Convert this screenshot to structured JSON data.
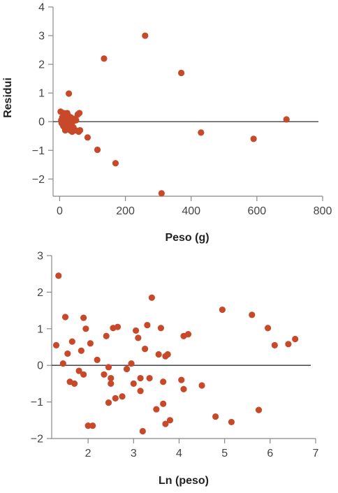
{
  "chart_data": [
    {
      "type": "scatter",
      "title": "",
      "xlabel": "Peso (g)",
      "ylabel": "Residui",
      "xlim": [
        -20,
        800
      ],
      "ylim": [
        -2.6,
        4
      ],
      "xticks": [
        0,
        200,
        400,
        600,
        800
      ],
      "yticks": [
        -2,
        -1,
        0,
        1,
        2,
        3,
        4
      ],
      "xtick_labels": [
        "0",
        "200",
        "400",
        "600",
        "800"
      ],
      "ytick_labels": [
        "−2",
        "−1",
        "0",
        "1",
        "2",
        "3",
        "4"
      ],
      "reference_line_y": 0,
      "grid": false,
      "marker_color": "#c8492a",
      "series": [
        {
          "x": [
            3,
            5,
            6,
            8,
            9,
            10,
            11,
            12,
            13,
            14,
            15,
            16,
            17,
            18,
            19,
            20,
            21,
            22,
            23,
            24,
            25,
            26,
            27,
            28,
            28,
            30,
            32,
            34,
            36,
            38,
            40,
            42,
            45,
            48,
            50,
            55,
            58,
            60,
            62,
            85,
            115,
            135,
            170,
            260,
            310,
            370,
            430,
            590,
            690
          ],
          "y": [
            0.35,
            0.05,
            -0.05,
            0.15,
            -0.1,
            0.1,
            -0.15,
            0.3,
            -0.05,
            0.2,
            -0.2,
            0.05,
            -0.3,
            0.15,
            -0.1,
            0.25,
            0.05,
            -0.2,
            0.3,
            -0.05,
            0.1,
            -0.25,
            0.2,
            0.98,
            -0.15,
            0.05,
            -0.3,
            0.15,
            -0.1,
            -0.35,
            0.0,
            -0.2,
            0.1,
            -0.3,
            0.05,
            0.25,
            -0.35,
            0.3,
            -0.3,
            -0.55,
            -0.98,
            2.2,
            -1.45,
            3.0,
            -2.5,
            1.7,
            -0.38,
            -0.6,
            0.08
          ]
        }
      ]
    },
    {
      "type": "scatter",
      "title": "",
      "xlabel": "Ln (peso)",
      "ylabel": "",
      "xlim": [
        1.2,
        7
      ],
      "ylim": [
        -2,
        3
      ],
      "xticks": [
        2,
        3,
        4,
        5,
        6,
        7
      ],
      "yticks": [
        -2,
        -1,
        0,
        1,
        2,
        3
      ],
      "xtick_labels": [
        "2",
        "3",
        "4",
        "5",
        "6",
        "7"
      ],
      "ytick_labels": [
        "−2",
        "−1",
        "0",
        "1",
        "2",
        "3"
      ],
      "reference_line_y": 0,
      "grid": false,
      "marker_color": "#c8492a",
      "series": [
        {
          "x": [
            1.3,
            1.35,
            1.45,
            1.5,
            1.55,
            1.6,
            1.65,
            1.7,
            1.8,
            1.85,
            1.9,
            1.9,
            1.95,
            2.0,
            2.05,
            2.1,
            2.2,
            2.35,
            2.4,
            2.45,
            2.45,
            2.5,
            2.5,
            2.55,
            2.6,
            2.65,
            2.75,
            2.85,
            2.95,
            3.0,
            3.05,
            3.1,
            3.15,
            3.15,
            3.2,
            3.25,
            3.3,
            3.35,
            3.4,
            3.5,
            3.55,
            3.6,
            3.65,
            3.65,
            3.7,
            3.7,
            3.75,
            3.8,
            4.05,
            4.1,
            4.1,
            4.2,
            4.5,
            4.8,
            4.95,
            5.15,
            5.6,
            5.75,
            5.95,
            6.1,
            6.4,
            6.55
          ],
          "y": [
            0.55,
            2.45,
            0.05,
            1.32,
            0.32,
            -0.45,
            0.65,
            -0.5,
            -0.15,
            0.4,
            1.3,
            -0.25,
            1.0,
            -1.65,
            0.6,
            -1.65,
            0.15,
            -0.25,
            0.8,
            -1.02,
            -0.05,
            -0.5,
            -0.35,
            1.02,
            -0.9,
            1.05,
            -0.85,
            -0.1,
            0.05,
            -0.5,
            0.95,
            0.75,
            -0.35,
            -0.7,
            -1.8,
            0.45,
            1.1,
            -0.35,
            1.85,
            -1.2,
            0.3,
            1.02,
            -1.05,
            -0.45,
            0.25,
            -1.6,
            0.3,
            -1.5,
            -0.4,
            0.8,
            -0.65,
            0.85,
            -0.55,
            -1.4,
            1.52,
            -1.55,
            1.38,
            -1.22,
            1.02,
            0.55,
            0.58,
            0.72
          ]
        }
      ]
    }
  ]
}
